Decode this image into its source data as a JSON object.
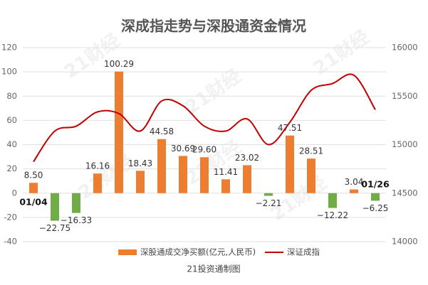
{
  "chart_data": {
    "type": "bar_line",
    "title": "深成指走势与深股通资金情况",
    "watermark": "21财经",
    "source": "21投资通制图",
    "categories": [
      "01/04",
      null,
      null,
      null,
      null,
      null,
      null,
      null,
      null,
      null,
      null,
      null,
      null,
      null,
      null,
      null,
      "01/26"
    ],
    "series": [
      {
        "name": "深股通成交净买额(亿元,人民币)",
        "color": "#ed7d31",
        "negative_color": "#70ad47",
        "values": [
          8.5,
          -22.75,
          -16.33,
          16.16,
          100.29,
          18.43,
          44.58,
          30.69,
          29.6,
          11.41,
          23.02,
          -2.21,
          47.51,
          28.51,
          -12.22,
          3.04,
          -6.25
        ],
        "value_labels": [
          "8.50",
          "−22.75",
          "−16.33",
          "16.16",
          "100.29",
          "18.43",
          "44.58",
          "30.69",
          "29.60",
          "11.41",
          "23.02",
          "−2.21",
          "47.51",
          "28.51",
          "−12.22",
          "3.04",
          "−6.25"
        ]
      },
      {
        "name": "深证成指",
        "color": "#c00000",
        "axis": "y2",
        "values": [
          14824,
          15140,
          15190,
          15338,
          15320,
          15140,
          15450,
          15400,
          15190,
          15140,
          15265,
          15000,
          15230,
          15560,
          15630,
          15715,
          15360
        ]
      }
    ],
    "ylim": [
      -40,
      120
    ],
    "yticks": [
      -40,
      -20,
      0,
      20,
      40,
      60,
      80,
      100,
      120
    ],
    "y2lim": [
      14000,
      16000
    ],
    "y2ticks": [
      14000,
      14500,
      15000,
      15500,
      16000
    ],
    "grid": true,
    "legend": "bottom"
  }
}
